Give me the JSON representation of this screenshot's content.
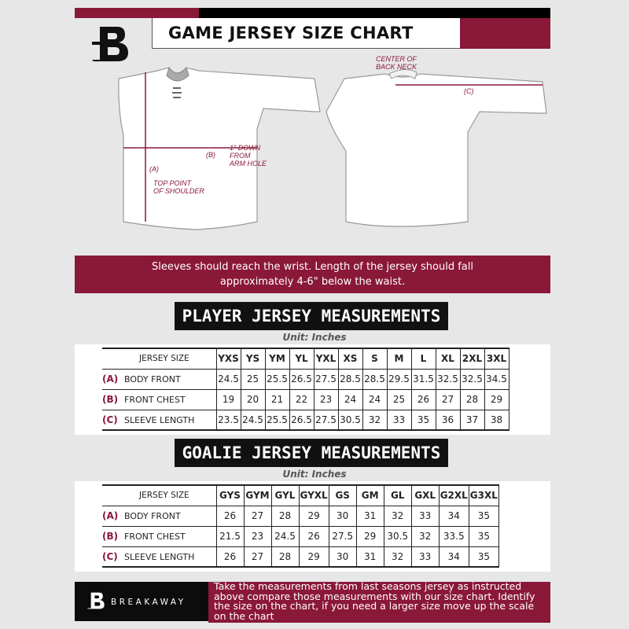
{
  "header": {
    "title": "GAME JERSEY SIZE CHART",
    "logo": "B"
  },
  "annotations": {
    "center_back_neck": "CENTER OF\nBACK NECK",
    "a_label": "(A)",
    "b_label": "(B)",
    "c_label": "(C)",
    "top_point": "TOP POINT\nOF SHOULDER",
    "one_inch_down": "1\" DOWN\nFROM\nARM HOLE"
  },
  "banner": {
    "text": "Sleeves should reach the wrist. Length of the jersey should fall approximately 4-6\" below the waist."
  },
  "player": {
    "title": "PLAYER JERSEY MEASUREMENTS",
    "unit": "Unit: Inches",
    "header_label": "JERSEY SIZE",
    "sizes": [
      "YXS",
      "YS",
      "YM",
      "YL",
      "YXL",
      "XS",
      "S",
      "M",
      "L",
      "XL",
      "2XL",
      "3XL"
    ],
    "rows": [
      {
        "letter": "(A)",
        "label": "BODY FRONT",
        "values": [
          "24.5",
          "25",
          "25.5",
          "26.5",
          "27.5",
          "28.5",
          "28.5",
          "29.5",
          "31.5",
          "32.5",
          "32.5",
          "34.5"
        ]
      },
      {
        "letter": "(B)",
        "label": "FRONT CHEST",
        "values": [
          "19",
          "20",
          "21",
          "22",
          "23",
          "24",
          "24",
          "25",
          "26",
          "27",
          "28",
          "29"
        ]
      },
      {
        "letter": "(C)",
        "label": "SLEEVE LENGTH",
        "values": [
          "23.5",
          "24.5",
          "25.5",
          "26.5",
          "27.5",
          "30.5",
          "32",
          "33",
          "35",
          "36",
          "37",
          "38"
        ]
      }
    ]
  },
  "goalie": {
    "title": "GOALIE JERSEY MEASUREMENTS",
    "unit": "Unit: Inches",
    "header_label": "JERSEY SIZE",
    "sizes": [
      "GYS",
      "GYM",
      "GYL",
      "GYXL",
      "GS",
      "GM",
      "GL",
      "GXL",
      "G2XL",
      "G3XL"
    ],
    "rows": [
      {
        "letter": "(A)",
        "label": "BODY FRONT",
        "values": [
          "26",
          "27",
          "28",
          "29",
          "30",
          "31",
          "32",
          "33",
          "34",
          "35"
        ]
      },
      {
        "letter": "(B)",
        "label": "FRONT CHEST",
        "values": [
          "21.5",
          "23",
          "24.5",
          "26",
          "27.5",
          "29",
          "30.5",
          "32",
          "33.5",
          "35"
        ]
      },
      {
        "letter": "(C)",
        "label": "SLEEVE LENGTH",
        "values": [
          "26",
          "27",
          "28",
          "29",
          "30",
          "31",
          "32",
          "33",
          "34",
          "35"
        ]
      }
    ]
  },
  "footer": {
    "brand": "BREAKAWAY",
    "text": "Take the measurements from last seasons jersey as instructed above compare those measurements  with our size chart. Identify the size on the chart, if you need a larger size move up the scale on the chart"
  },
  "colors": {
    "accent": "#8a1838",
    "dark": "#111111",
    "background": "#e7e7e8"
  }
}
